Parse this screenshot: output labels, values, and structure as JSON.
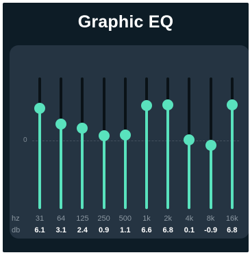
{
  "title": "Graphic EQ",
  "zero_label": "0",
  "row_labels": {
    "frequency": "hz",
    "gain": "db"
  },
  "gain_range_db": [
    -12,
    12
  ],
  "colors": {
    "accent": "#59e2bd",
    "background": "#0d1c26",
    "panel": "#253442"
  },
  "bands": [
    {
      "freq": "31",
      "gain_label": "6.1",
      "gain": 6.1
    },
    {
      "freq": "64",
      "gain_label": "3.1",
      "gain": 3.1
    },
    {
      "freq": "125",
      "gain_label": "2.4",
      "gain": 2.4
    },
    {
      "freq": "250",
      "gain_label": "0.9",
      "gain": 0.9
    },
    {
      "freq": "500",
      "gain_label": "1.1",
      "gain": 1.1
    },
    {
      "freq": "1k",
      "gain_label": "6.6",
      "gain": 6.6
    },
    {
      "freq": "2k",
      "gain_label": "6.8",
      "gain": 6.8
    },
    {
      "freq": "4k",
      "gain_label": "0.1",
      "gain": 0.1
    },
    {
      "freq": "8k",
      "gain_label": "-0.9",
      "gain": -0.9
    },
    {
      "freq": "16k",
      "gain_label": "6.8",
      "gain": 6.8
    }
  ]
}
